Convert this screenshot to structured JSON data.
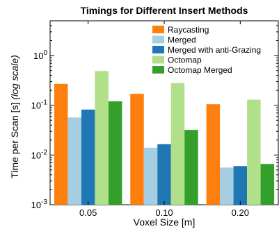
{
  "chart_data": {
    "type": "bar",
    "title": "Timings for Different Insert Methods",
    "xlabel": "Voxel Size [m]",
    "ylabel": {
      "main": "Time per Scan [s]",
      "note": "(log scale)"
    },
    "yscale": "log",
    "ylim": [
      0.001,
      5
    ],
    "yticks": [
      {
        "base": "10",
        "exp": "-3",
        "value": 0.001
      },
      {
        "base": "10",
        "exp": "-2",
        "value": 0.01
      },
      {
        "base": "10",
        "exp": "-1",
        "value": 0.1
      },
      {
        "base": "10",
        "exp": "0",
        "value": 1
      }
    ],
    "categories": [
      "0.05",
      "0.10",
      "0.20"
    ],
    "legend_position": "top-right",
    "grid": false,
    "series": [
      {
        "name": "Raycasting",
        "color": "#ff7f0e",
        "values": [
          0.27,
          0.17,
          0.105
        ]
      },
      {
        "name": "Merged",
        "color": "#a6cee3",
        "values": [
          0.057,
          0.014,
          0.0056
        ]
      },
      {
        "name": "Merged with anti-Grazing",
        "color": "#1f78b4",
        "values": [
          0.082,
          0.0165,
          0.006
        ]
      },
      {
        "name": "Octomap",
        "color": "#b2df8a",
        "values": [
          0.49,
          0.28,
          0.13
        ]
      },
      {
        "name": "Octomap Merged",
        "color": "#33a02c",
        "values": [
          0.12,
          0.032,
          0.0066
        ]
      }
    ]
  }
}
